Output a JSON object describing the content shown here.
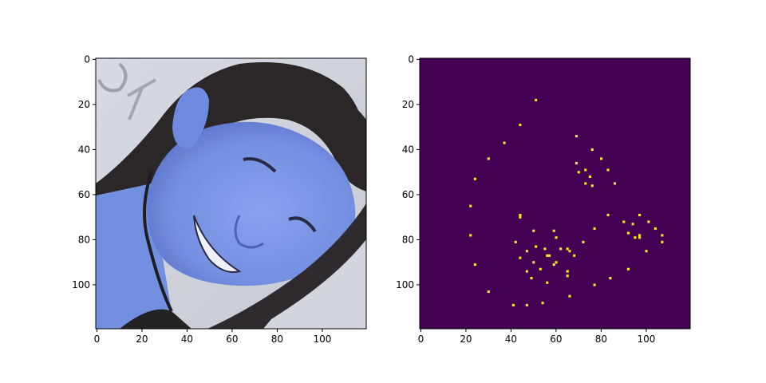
{
  "chart_data": [
    {
      "type": "image",
      "description_free": true,
      "xlim": [
        0,
        120
      ],
      "ylim": [
        120,
        0
      ],
      "xticks": [
        0,
        20,
        40,
        60,
        80,
        100
      ],
      "yticks": [
        0,
        20,
        40,
        60,
        80,
        100
      ],
      "colors": {
        "background_top_left": "#c9ccd6",
        "skin": "#7a95e6",
        "skin_shadow": "#5e78cf",
        "hair": "#2a2526",
        "background_bottom_right": "#d4d6e0"
      }
    },
    {
      "type": "heatmap",
      "xlim": [
        0,
        120
      ],
      "ylim": [
        120,
        0
      ],
      "xticks": [
        0,
        20,
        40,
        60,
        80,
        100
      ],
      "yticks": [
        0,
        20,
        40,
        60,
        80,
        100
      ],
      "colors": {
        "background": "#440154",
        "point": "#fde725"
      },
      "points": [
        [
          51,
          18
        ],
        [
          44,
          29
        ],
        [
          37,
          37
        ],
        [
          69,
          34
        ],
        [
          30,
          44
        ],
        [
          76,
          40
        ],
        [
          80,
          44
        ],
        [
          69,
          46
        ],
        [
          73,
          49
        ],
        [
          70,
          50
        ],
        [
          83,
          49
        ],
        [
          75,
          52
        ],
        [
          73,
          55
        ],
        [
          76,
          56
        ],
        [
          86,
          55
        ],
        [
          24,
          53
        ],
        [
          22,
          65
        ],
        [
          44,
          69
        ],
        [
          44,
          70
        ],
        [
          83,
          69
        ],
        [
          97,
          69
        ],
        [
          77,
          75
        ],
        [
          90,
          72
        ],
        [
          101,
          72
        ],
        [
          94,
          73
        ],
        [
          104,
          75
        ],
        [
          92,
          77
        ],
        [
          22,
          78
        ],
        [
          97,
          78
        ],
        [
          97,
          79
        ],
        [
          107,
          78
        ],
        [
          95,
          79
        ],
        [
          107,
          81
        ],
        [
          42,
          81
        ],
        [
          50,
          76
        ],
        [
          59,
          76
        ],
        [
          60,
          79
        ],
        [
          72,
          81
        ],
        [
          51,
          83
        ],
        [
          47,
          85
        ],
        [
          55,
          84
        ],
        [
          62,
          84
        ],
        [
          65,
          84
        ],
        [
          66,
          85
        ],
        [
          100,
          85
        ],
        [
          44,
          88
        ],
        [
          56,
          87
        ],
        [
          57,
          87
        ],
        [
          68,
          87
        ],
        [
          50,
          90
        ],
        [
          59,
          91
        ],
        [
          60,
          90
        ],
        [
          24,
          91
        ],
        [
          47,
          94
        ],
        [
          53,
          93
        ],
        [
          65,
          94
        ],
        [
          65,
          96
        ],
        [
          92,
          93
        ],
        [
          49,
          97
        ],
        [
          84,
          97
        ],
        [
          56,
          99
        ],
        [
          77,
          100
        ],
        [
          30,
          103
        ],
        [
          66,
          105
        ],
        [
          41,
          109
        ],
        [
          47,
          109
        ],
        [
          54,
          108
        ]
      ]
    }
  ]
}
